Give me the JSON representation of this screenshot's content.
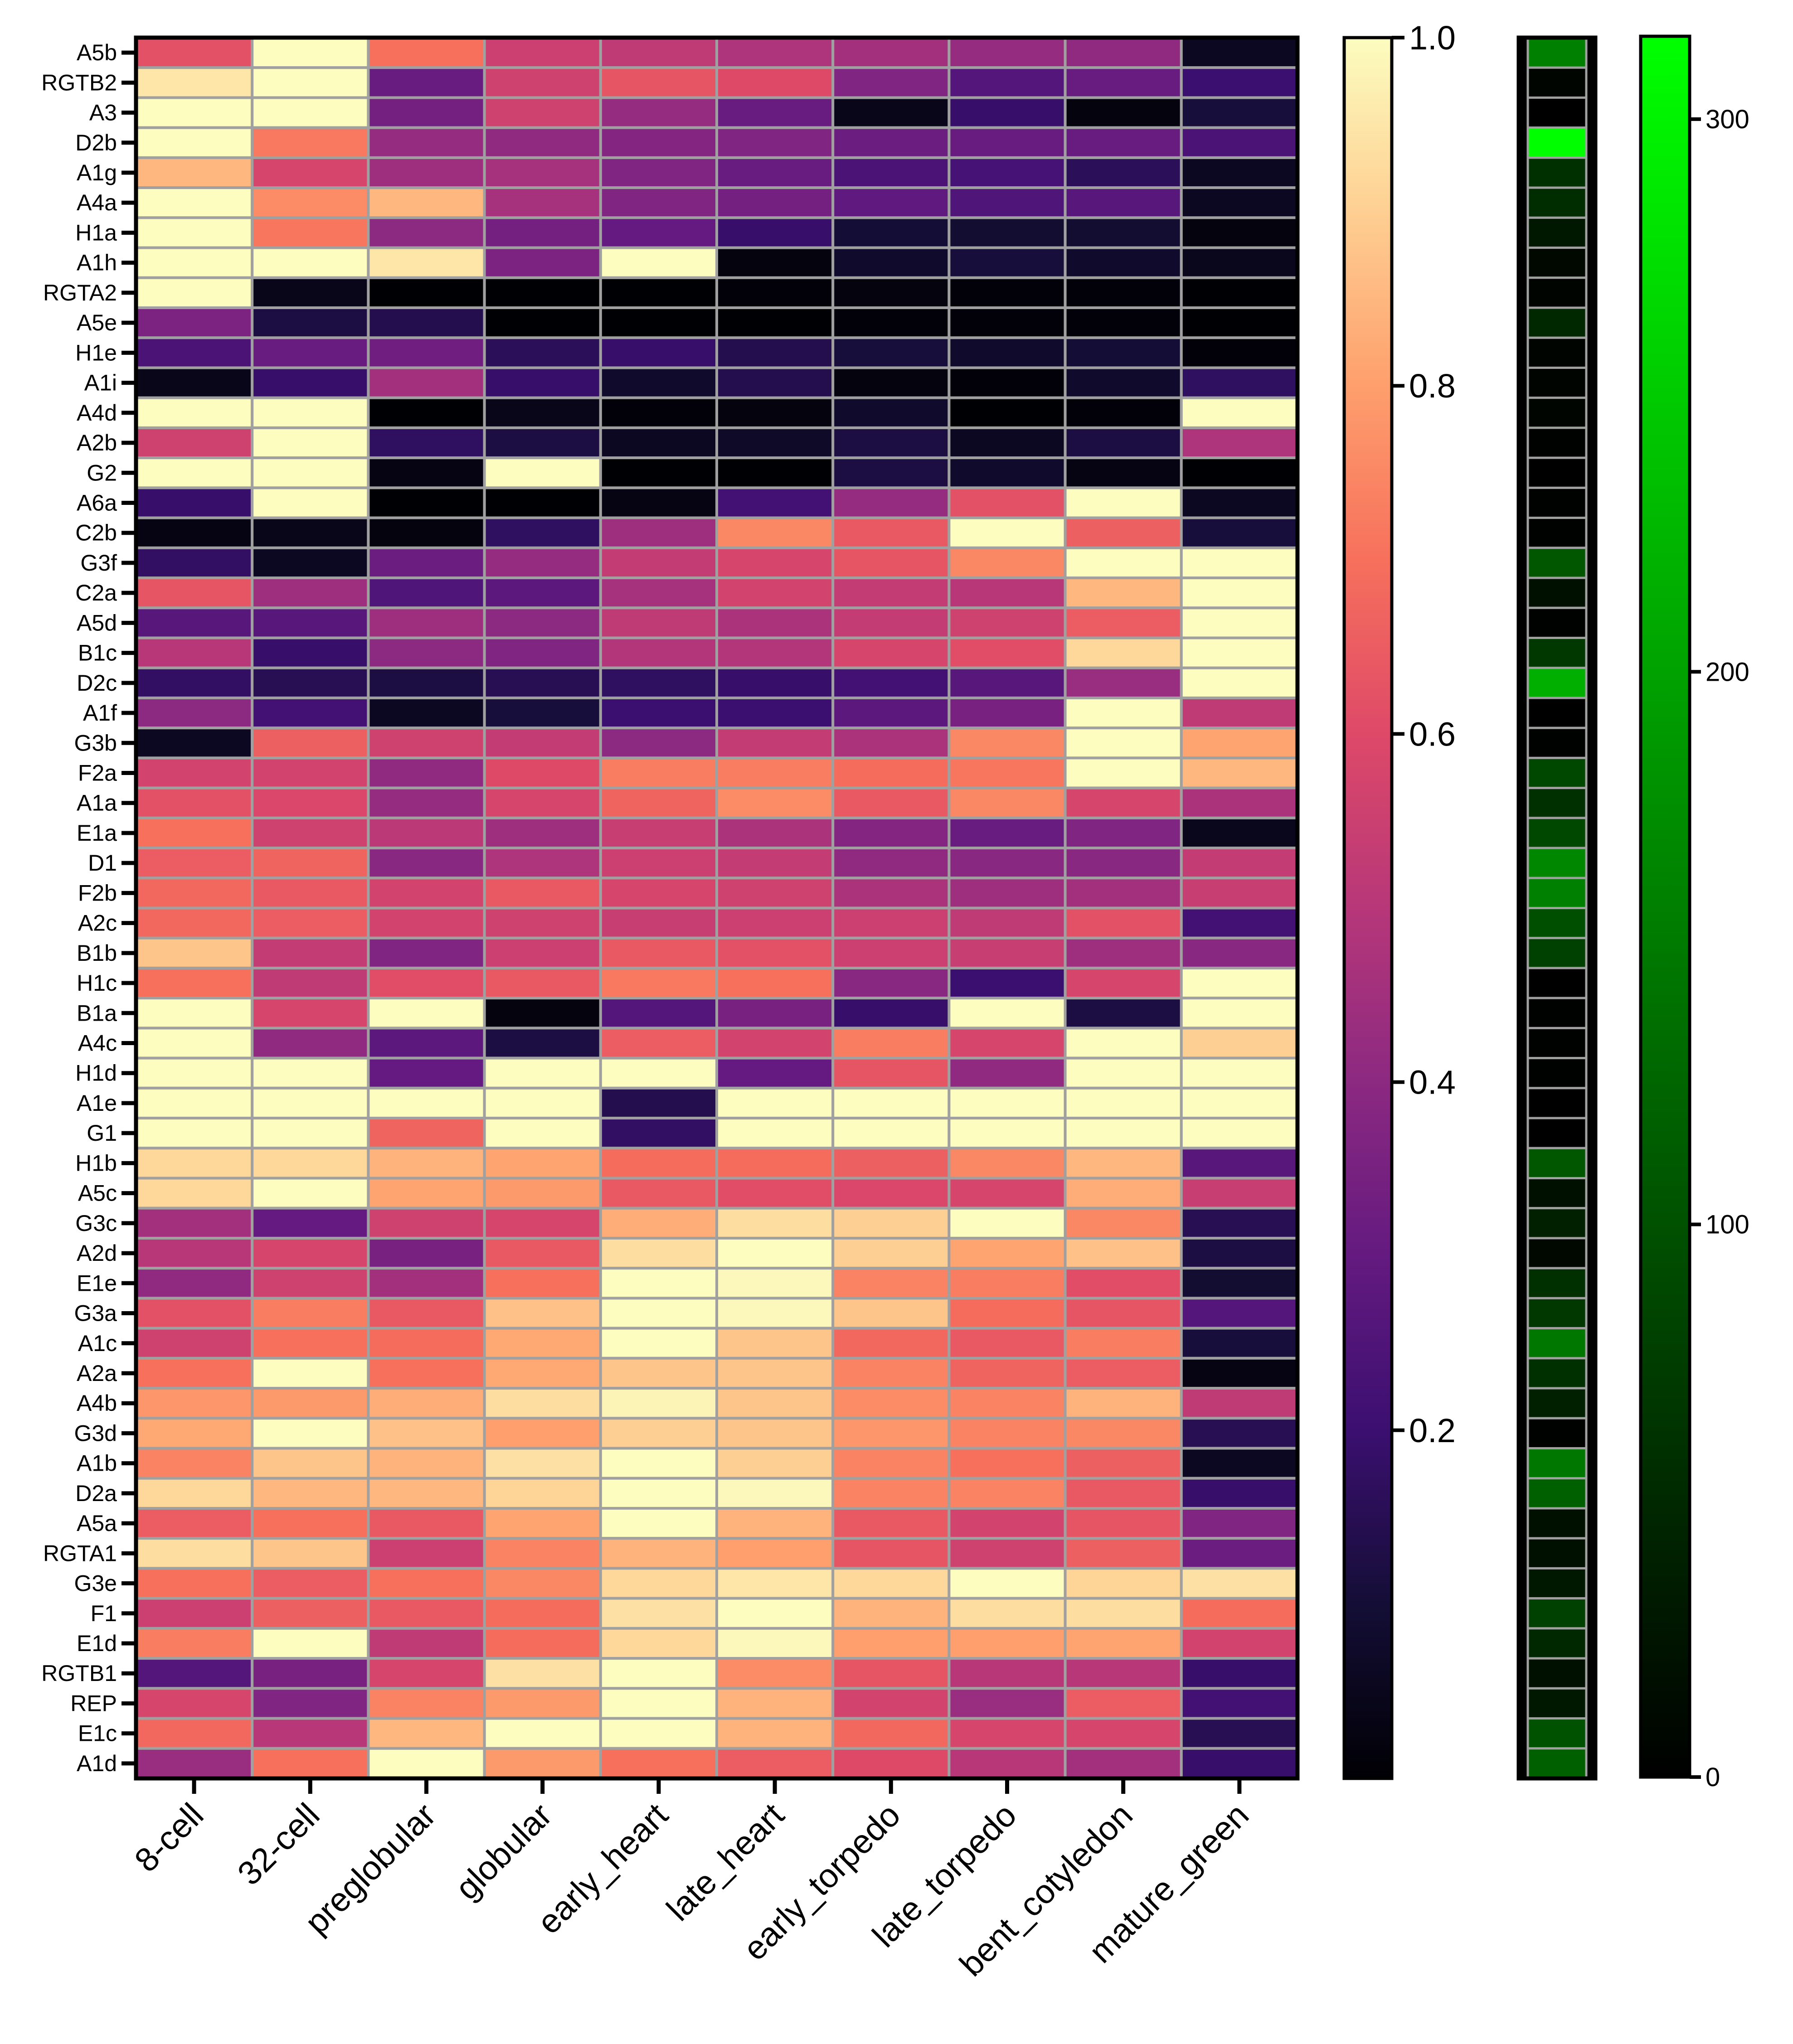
{
  "chart_data": {
    "type": "heatmap",
    "title": "",
    "xlabel": "",
    "ylabel": "",
    "columns": [
      "8-cell",
      "32-cell",
      "preglobular",
      "globular",
      "early_heart",
      "late_heart",
      "early_torpedo",
      "late_torpedo",
      "bent_cotyledon",
      "mature_green"
    ],
    "rows": [
      "A5b",
      "RGTB2",
      "A3",
      "D2b",
      "A1g",
      "A4a",
      "H1a",
      "A1h",
      "RGTA2",
      "A5e",
      "H1e",
      "A1i",
      "A4d",
      "A2b",
      "G2",
      "A6a",
      "C2b",
      "G3f",
      "C2a",
      "A5d",
      "B1c",
      "D2c",
      "A1f",
      "G3b",
      "F2a",
      "A1a",
      "E1a",
      "D1",
      "F2b",
      "A2c",
      "B1b",
      "H1c",
      "B1a",
      "A4c",
      "H1d",
      "A1e",
      "G1",
      "H1b",
      "A5c",
      "G3c",
      "A2d",
      "E1e",
      "G3a",
      "A1c",
      "A2a",
      "A4b",
      "G3d",
      "A1b",
      "D2a",
      "A5a",
      "RGTA1",
      "G3e",
      "F1",
      "E1d",
      "RGTB1",
      "REP",
      "E1c",
      "A1d"
    ],
    "values": [
      [
        0.62,
        1.0,
        0.7,
        0.55,
        0.52,
        0.48,
        0.45,
        0.42,
        0.41,
        0.06
      ],
      [
        0.95,
        1.0,
        0.31,
        0.56,
        0.63,
        0.6,
        0.37,
        0.26,
        0.31,
        0.2
      ],
      [
        1.0,
        1.0,
        0.34,
        0.56,
        0.42,
        0.31,
        0.04,
        0.19,
        0.02,
        0.11
      ],
      [
        1.0,
        0.72,
        0.42,
        0.41,
        0.38,
        0.37,
        0.32,
        0.31,
        0.31,
        0.24
      ],
      [
        0.85,
        0.58,
        0.44,
        0.46,
        0.37,
        0.31,
        0.24,
        0.23,
        0.16,
        0.06
      ],
      [
        1.0,
        0.76,
        0.85,
        0.46,
        0.37,
        0.34,
        0.29,
        0.25,
        0.27,
        0.06
      ],
      [
        1.0,
        0.71,
        0.4,
        0.34,
        0.3,
        0.19,
        0.1,
        0.09,
        0.09,
        0.02
      ],
      [
        1.0,
        1.0,
        0.95,
        0.36,
        1.0,
        0.02,
        0.08,
        0.11,
        0.08,
        0.05
      ],
      [
        1.0,
        0.04,
        0.0,
        0.0,
        0.0,
        0.01,
        0.02,
        0.01,
        0.01,
        0.0
      ],
      [
        0.36,
        0.12,
        0.14,
        0.0,
        0.0,
        0.0,
        0.01,
        0.01,
        0.01,
        0.0
      ],
      [
        0.24,
        0.31,
        0.33,
        0.16,
        0.19,
        0.14,
        0.11,
        0.08,
        0.1,
        0.01
      ],
      [
        0.04,
        0.19,
        0.45,
        0.19,
        0.08,
        0.14,
        0.02,
        0.01,
        0.08,
        0.17
      ],
      [
        1.0,
        1.0,
        0.0,
        0.04,
        0.01,
        0.02,
        0.08,
        0.0,
        0.01,
        1.0
      ],
      [
        0.56,
        1.0,
        0.17,
        0.12,
        0.06,
        0.07,
        0.12,
        0.06,
        0.12,
        0.48
      ],
      [
        1.0,
        1.0,
        0.03,
        1.0,
        0.0,
        0.0,
        0.12,
        0.08,
        0.03,
        0.0
      ],
      [
        0.19,
        1.0,
        0.0,
        0.0,
        0.03,
        0.22,
        0.42,
        0.62,
        1.0,
        0.06
      ],
      [
        0.03,
        0.04,
        0.02,
        0.17,
        0.44,
        0.75,
        0.64,
        1.0,
        0.66,
        0.11
      ],
      [
        0.18,
        0.06,
        0.32,
        0.42,
        0.53,
        0.58,
        0.63,
        0.75,
        1.0,
        1.0
      ],
      [
        0.63,
        0.44,
        0.25,
        0.28,
        0.46,
        0.57,
        0.53,
        0.5,
        0.85,
        1.0
      ],
      [
        0.27,
        0.27,
        0.44,
        0.4,
        0.52,
        0.47,
        0.53,
        0.56,
        0.65,
        1.0
      ],
      [
        0.5,
        0.19,
        0.4,
        0.37,
        0.49,
        0.49,
        0.58,
        0.61,
        0.92,
        1.0
      ],
      [
        0.18,
        0.15,
        0.12,
        0.15,
        0.17,
        0.19,
        0.22,
        0.27,
        0.43,
        1.0
      ],
      [
        0.4,
        0.22,
        0.06,
        0.11,
        0.2,
        0.2,
        0.28,
        0.35,
        1.0,
        0.52
      ],
      [
        0.06,
        0.66,
        0.56,
        0.53,
        0.4,
        0.53,
        0.47,
        0.75,
        1.0,
        0.81
      ],
      [
        0.57,
        0.57,
        0.41,
        0.6,
        0.73,
        0.73,
        0.69,
        0.71,
        1.0,
        0.85
      ],
      [
        0.62,
        0.59,
        0.42,
        0.58,
        0.67,
        0.76,
        0.64,
        0.75,
        0.58,
        0.47
      ],
      [
        0.7,
        0.56,
        0.51,
        0.44,
        0.54,
        0.47,
        0.38,
        0.31,
        0.37,
        0.05
      ],
      [
        0.65,
        0.67,
        0.39,
        0.48,
        0.55,
        0.53,
        0.41,
        0.39,
        0.39,
        0.53
      ],
      [
        0.68,
        0.64,
        0.57,
        0.64,
        0.58,
        0.56,
        0.47,
        0.44,
        0.45,
        0.54
      ],
      [
        0.68,
        0.65,
        0.57,
        0.56,
        0.54,
        0.55,
        0.55,
        0.52,
        0.62,
        0.22
      ],
      [
        0.88,
        0.53,
        0.37,
        0.55,
        0.64,
        0.62,
        0.55,
        0.54,
        0.44,
        0.39
      ],
      [
        0.7,
        0.52,
        0.61,
        0.64,
        0.72,
        0.7,
        0.39,
        0.2,
        0.58,
        1.0
      ],
      [
        1.0,
        0.58,
        1.0,
        0.02,
        0.26,
        0.35,
        0.19,
        1.0,
        0.12,
        1.0
      ],
      [
        1.0,
        0.41,
        0.28,
        0.12,
        0.65,
        0.57,
        0.73,
        0.58,
        1.0,
        0.9
      ],
      [
        1.0,
        1.0,
        0.3,
        1.0,
        1.0,
        0.3,
        0.63,
        0.41,
        1.0,
        1.0
      ],
      [
        1.0,
        1.0,
        1.0,
        1.0,
        0.14,
        1.0,
        1.0,
        1.0,
        1.0,
        1.0
      ],
      [
        1.0,
        1.0,
        0.67,
        1.0,
        0.18,
        1.0,
        1.0,
        1.0,
        1.0,
        1.0
      ],
      [
        0.92,
        0.92,
        0.84,
        0.81,
        0.69,
        0.69,
        0.66,
        0.75,
        0.85,
        0.27
      ],
      [
        0.92,
        1.0,
        0.81,
        0.79,
        0.64,
        0.61,
        0.59,
        0.58,
        0.83,
        0.54
      ],
      [
        0.45,
        0.3,
        0.56,
        0.58,
        0.83,
        0.93,
        0.9,
        1.0,
        0.75,
        0.15
      ],
      [
        0.5,
        0.58,
        0.35,
        0.64,
        0.93,
        1.0,
        0.9,
        0.81,
        0.87,
        0.12
      ],
      [
        0.41,
        0.56,
        0.45,
        0.7,
        1.0,
        0.99,
        0.74,
        0.73,
        0.61,
        0.09
      ],
      [
        0.62,
        0.73,
        0.64,
        0.87,
        1.0,
        0.99,
        0.88,
        0.69,
        0.63,
        0.26
      ],
      [
        0.56,
        0.7,
        0.69,
        0.82,
        1.0,
        0.88,
        0.68,
        0.64,
        0.73,
        0.11
      ],
      [
        0.7,
        1.0,
        0.7,
        0.82,
        0.88,
        0.88,
        0.74,
        0.67,
        0.65,
        0.03
      ],
      [
        0.78,
        0.79,
        0.83,
        0.93,
        0.98,
        0.88,
        0.76,
        0.74,
        0.84,
        0.52
      ],
      [
        0.82,
        1.0,
        0.87,
        0.8,
        0.9,
        0.88,
        0.78,
        0.74,
        0.75,
        0.15
      ],
      [
        0.74,
        0.88,
        0.84,
        0.94,
        1.0,
        0.9,
        0.74,
        0.7,
        0.66,
        0.06
      ],
      [
        0.92,
        0.85,
        0.85,
        0.91,
        1.0,
        0.99,
        0.74,
        0.74,
        0.64,
        0.19
      ],
      [
        0.65,
        0.7,
        0.64,
        0.81,
        1.0,
        0.84,
        0.64,
        0.57,
        0.63,
        0.37
      ],
      [
        0.93,
        0.88,
        0.55,
        0.74,
        0.84,
        0.8,
        0.63,
        0.56,
        0.66,
        0.32
      ],
      [
        0.7,
        0.65,
        0.7,
        0.75,
        0.92,
        0.95,
        0.92,
        1.0,
        0.91,
        0.94
      ],
      [
        0.55,
        0.66,
        0.64,
        0.69,
        0.94,
        1.0,
        0.84,
        0.93,
        0.93,
        0.69
      ],
      [
        0.73,
        1.0,
        0.52,
        0.69,
        0.92,
        0.99,
        0.8,
        0.8,
        0.81,
        0.57
      ],
      [
        0.26,
        0.35,
        0.58,
        0.94,
        1.0,
        0.76,
        0.63,
        0.5,
        0.5,
        0.19
      ],
      [
        0.58,
        0.37,
        0.74,
        0.79,
        1.0,
        0.84,
        0.57,
        0.43,
        0.65,
        0.22
      ],
      [
        0.68,
        0.5,
        0.85,
        1.0,
        1.0,
        0.84,
        0.68,
        0.58,
        0.58,
        0.15
      ],
      [
        0.43,
        0.7,
        1.0,
        0.79,
        0.7,
        0.65,
        0.6,
        0.5,
        0.45,
        0.19
      ]
    ],
    "color_scale": {
      "colormap": "magma",
      "range": [
        0,
        1.0
      ],
      "ticks": [
        "0.2",
        "0.4",
        "0.6",
        "0.8",
        "1.0"
      ]
    },
    "side_bar": {
      "colormap": "black-green",
      "range": [
        0,
        315
      ],
      "ticks": [
        "0",
        "100",
        "200",
        "300"
      ],
      "values": [
        158,
        6,
        0,
        314,
        59,
        55,
        30,
        10,
        5,
        49,
        5,
        5,
        6,
        3,
        0,
        2,
        3,
        108,
        20,
        2,
        69,
        216,
        0,
        3,
        88,
        59,
        88,
        167,
        158,
        98,
        79,
        0,
        3,
        3,
        3,
        0,
        0,
        108,
        20,
        39,
        10,
        59,
        69,
        148,
        59,
        39,
        3,
        148,
        118,
        20,
        20,
        30,
        79,
        49,
        20,
        30,
        100,
        118
      ]
    },
    "grid": true,
    "legend": "right"
  }
}
